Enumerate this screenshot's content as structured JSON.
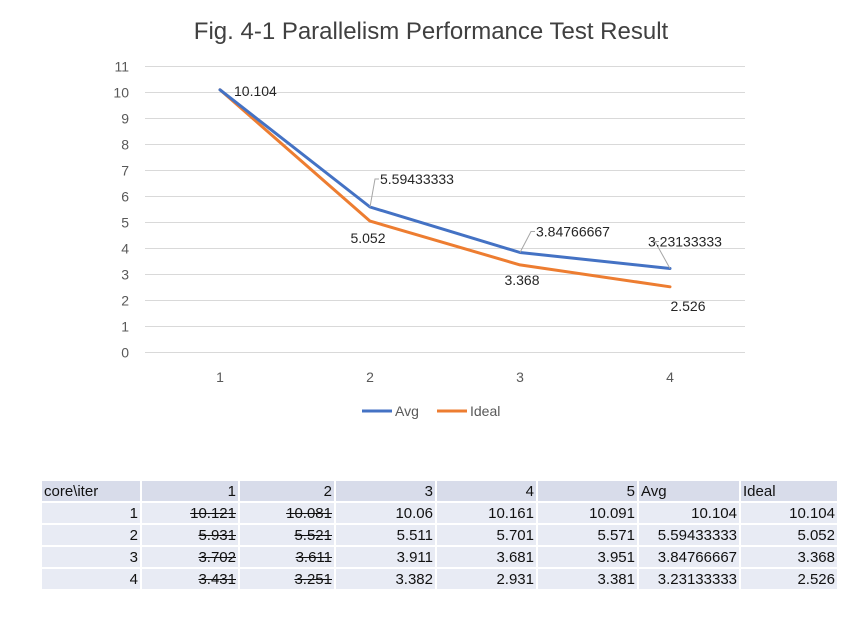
{
  "chart_data": {
    "type": "line",
    "title": "Fig. 4-1 Parallelism Performance Test Result",
    "categories": [
      "1",
      "2",
      "3",
      "4"
    ],
    "ylim": [
      0,
      11
    ],
    "yticks": [
      "0",
      "1",
      "2",
      "3",
      "4",
      "5",
      "6",
      "7",
      "8",
      "9",
      "10",
      "11"
    ],
    "grid": true,
    "legend_position": "bottom",
    "series": [
      {
        "name": "Avg",
        "color": "#4472c4",
        "values": [
          10.104,
          5.59433333,
          3.84766667,
          3.23133333
        ],
        "labels": [
          "10.104",
          "5.59433333",
          "3.84766667",
          "3.23133333"
        ]
      },
      {
        "name": "Ideal",
        "color": "#ed7d31",
        "values": [
          10.104,
          5.052,
          3.368,
          2.526
        ],
        "labels": [
          "",
          "5.052",
          "3.368",
          "2.526"
        ]
      }
    ]
  },
  "table": {
    "header": [
      "core\\iter",
      "1",
      "2",
      "3",
      "4",
      "5",
      "Avg",
      "Ideal"
    ],
    "rows": [
      [
        "1",
        "10.121",
        "10.081",
        "10.06",
        "10.161",
        "10.091",
        "10.104",
        "10.104"
      ],
      [
        "2",
        "5.931",
        "5.521",
        "5.511",
        "5.701",
        "5.571",
        "5.59433333",
        "5.052"
      ],
      [
        "3",
        "3.702",
        "3.611",
        "3.911",
        "3.681",
        "3.951",
        "3.84766667",
        "3.368"
      ],
      [
        "4",
        "3.431",
        "3.251",
        "3.382",
        "2.931",
        "3.381",
        "3.23133333",
        "2.526"
      ]
    ]
  }
}
